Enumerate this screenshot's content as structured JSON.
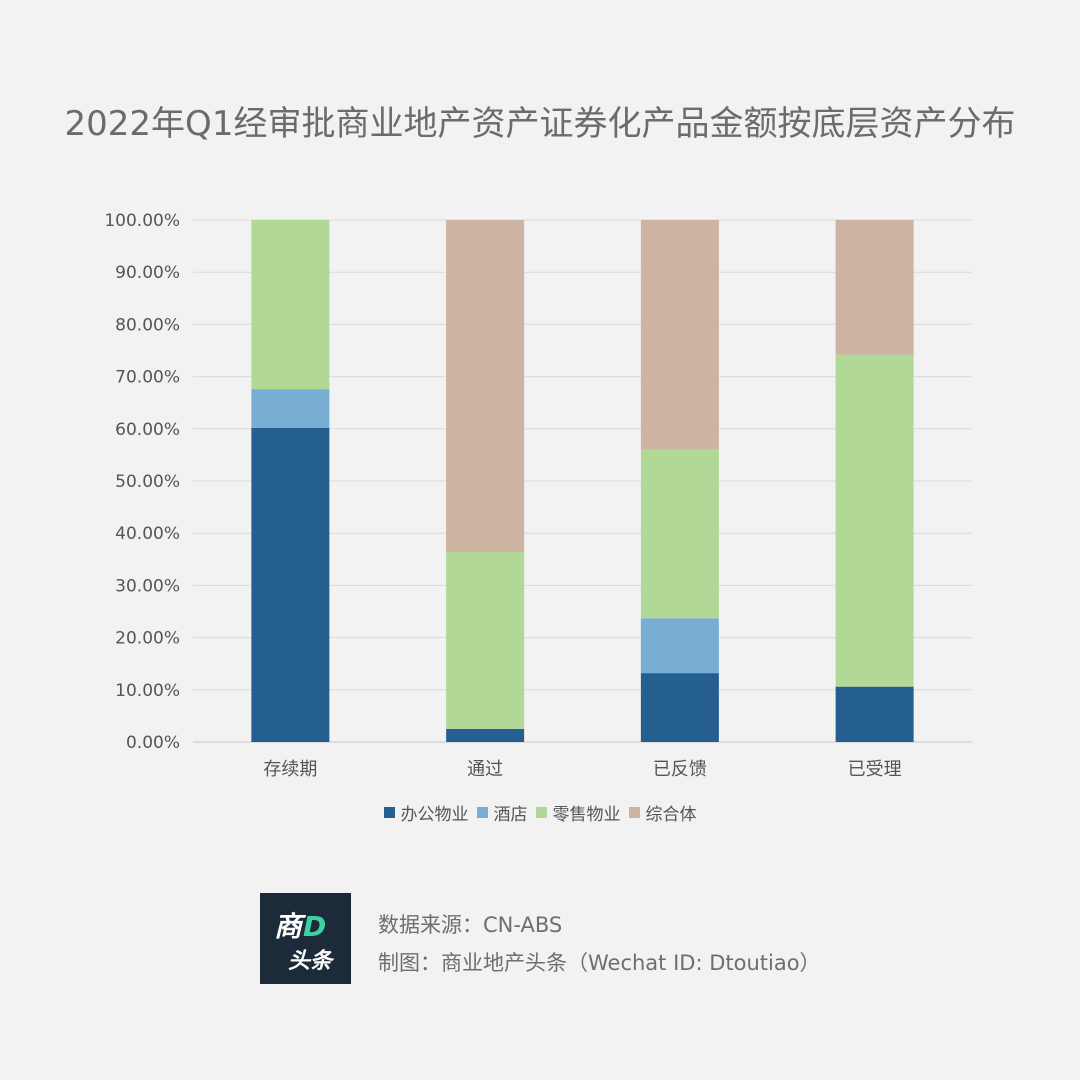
{
  "title": "2022年Q1经审批商业地产资产证券化产品金额按底层资产分布",
  "chart_data": {
    "type": "bar",
    "stacked": true,
    "title": "2022年Q1经审批商业地产资产证券化产品金额按底层资产分布",
    "categories": [
      "存续期",
      "通过",
      "已反馈",
      "已受理"
    ],
    "series": [
      {
        "name": "办公物业",
        "color": "#245f8f",
        "values": [
          60.2,
          2.5,
          13.2,
          10.6
        ]
      },
      {
        "name": "酒店",
        "color": "#78aed3",
        "values": [
          7.4,
          0.0,
          10.5,
          0.0
        ]
      },
      {
        "name": "零售物业",
        "color": "#b1d897",
        "values": [
          32.4,
          33.9,
          32.3,
          63.6
        ]
      },
      {
        "name": "综合体",
        "color": "#cdb3a1",
        "values": [
          0.0,
          63.6,
          44.0,
          25.8
        ]
      }
    ],
    "ylim": [
      0,
      100
    ],
    "yticks": [
      "0.00%",
      "10.00%",
      "20.00%",
      "30.00%",
      "40.00%",
      "50.00%",
      "60.00%",
      "70.00%",
      "80.00%",
      "90.00%",
      "100.00%"
    ],
    "xlabel": "",
    "ylabel": "",
    "legend": "bottom"
  },
  "footer": {
    "logo_top": "商",
    "logo_accent": "D",
    "logo_bottom": "头条",
    "source": "数据来源：CN-ABS",
    "credit": "制图：商业地产头条（Wechat ID: Dtoutiao）"
  }
}
